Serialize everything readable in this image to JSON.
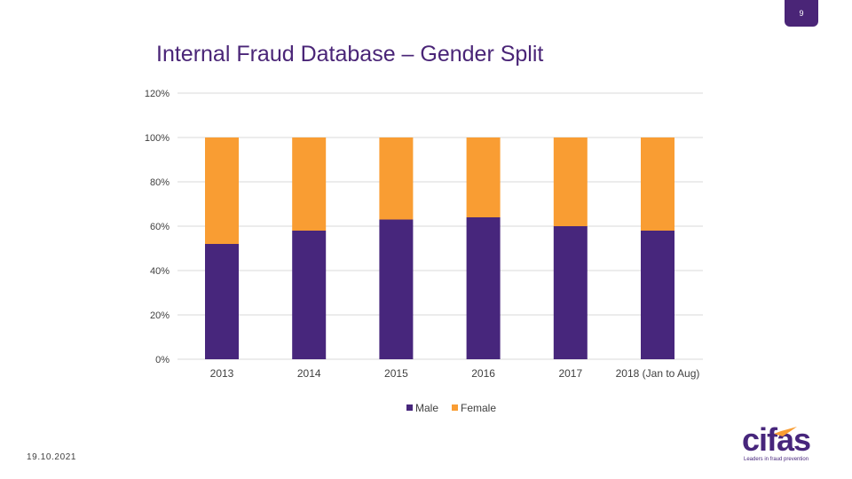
{
  "page_number": "9",
  "title": "Internal Fraud Database – Gender Split",
  "footer": {
    "date": "19.10.2021"
  },
  "logo": {
    "word": "cifas",
    "tagline": "Leaders in fraud prevention"
  },
  "colors": {
    "male": "#47267c",
    "female": "#f99d33",
    "title": "#4a2577",
    "badge": "#4a2577",
    "grid": "#d9d9d9"
  },
  "chart_data": {
    "type": "bar",
    "stacked": true,
    "title": "Internal Fraud Database – Gender Split",
    "xlabel": "",
    "ylabel": "",
    "categories": [
      "2013",
      "2014",
      "2015",
      "2016",
      "2017",
      "2018 (Jan to Aug)"
    ],
    "series": [
      {
        "name": "Male",
        "values": [
          52,
          58,
          63,
          64,
          60,
          58
        ]
      },
      {
        "name": "Female",
        "values": [
          48,
          42,
          37,
          36,
          40,
          42
        ]
      }
    ],
    "ylim": [
      0,
      120
    ],
    "yticks": [
      "0%",
      "20%",
      "40%",
      "60%",
      "80%",
      "100%",
      "120%"
    ],
    "grid": true,
    "legend": "bottom-center"
  }
}
